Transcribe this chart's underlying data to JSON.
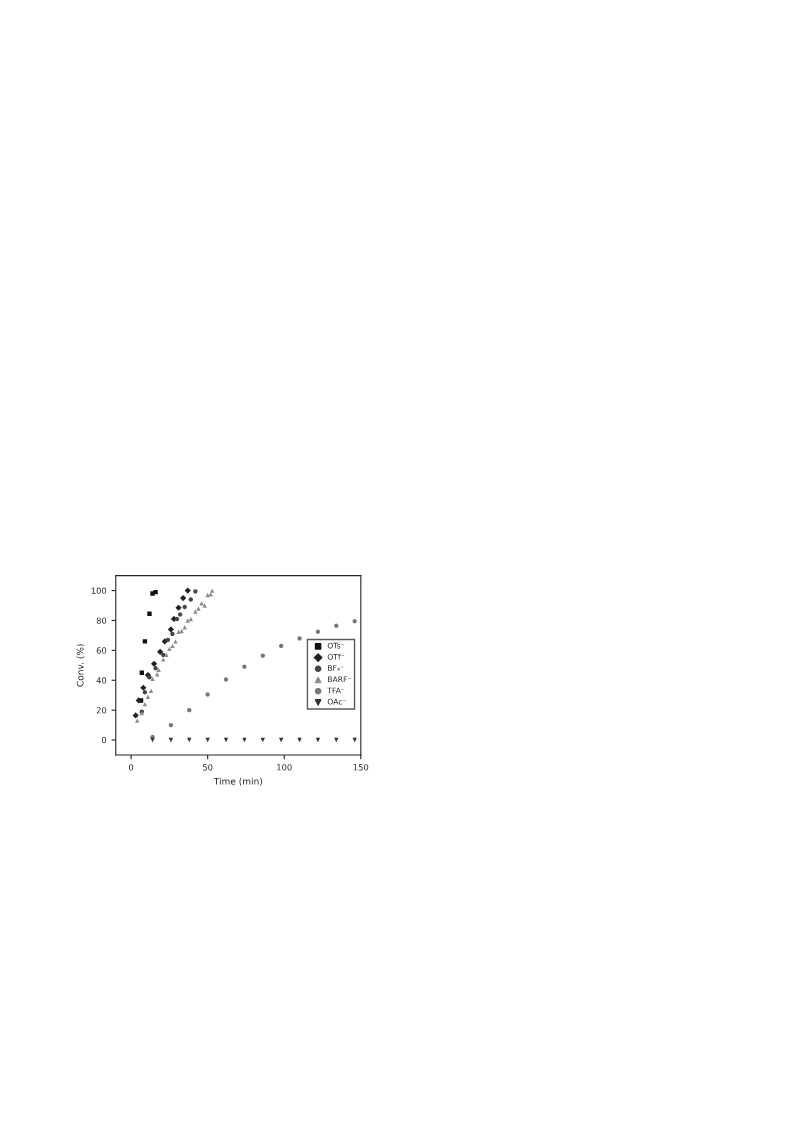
{
  "chart_data": {
    "type": "scatter",
    "xlabel": "Time (min)",
    "ylabel": "Conv. (%)",
    "xlim": [
      -10,
      150
    ],
    "xticks": [
      0,
      50,
      100,
      150
    ],
    "ylim": [
      -10,
      110
    ],
    "yticks": [
      0,
      20,
      40,
      60,
      80,
      100
    ],
    "grid": false,
    "legend": "right",
    "series": [
      {
        "name": "OTs⁻",
        "color": "#111111",
        "marker": "square",
        "x": [
          6.5,
          7,
          9,
          12,
          14,
          16
        ],
        "values": [
          26.5,
          45,
          66,
          84.5,
          98,
          99
        ]
      },
      {
        "name": "OTf⁻",
        "color": "#222222",
        "marker": "diamond",
        "x": [
          3,
          5,
          8,
          11,
          15,
          19,
          22,
          26,
          28,
          31,
          34,
          37
        ],
        "values": [
          16.5,
          26.5,
          35,
          43.5,
          51,
          59,
          66,
          74,
          81,
          88.5,
          95,
          100
        ]
      },
      {
        "name": "BF₄⁻",
        "color": "#444444",
        "marker": "circle",
        "x": [
          7,
          9,
          12,
          16,
          21,
          24,
          27,
          30,
          32,
          35,
          39,
          42
        ],
        "values": [
          19,
          32,
          42,
          48,
          57,
          67,
          71,
          81,
          84,
          89,
          94,
          99.5
        ]
      },
      {
        "name": "BARF⁻",
        "color": "#8c8c8c",
        "marker": "triangle",
        "x": [
          4,
          7,
          9,
          11,
          13,
          14,
          17,
          18,
          21,
          23,
          25,
          27,
          29,
          31,
          33,
          35,
          37,
          39,
          42,
          44,
          46,
          48,
          50,
          52,
          53
        ],
        "values": [
          13,
          18,
          24,
          29,
          33,
          41,
          44,
          47,
          54,
          57,
          61,
          63,
          66,
          72.5,
          73,
          75.5,
          80,
          81,
          86,
          88,
          91.5,
          90,
          97,
          97.5,
          100
        ]
      },
      {
        "name": "TFA⁻",
        "color": "#777777",
        "marker": "circle",
        "x": [
          14,
          26,
          38,
          50,
          62,
          74,
          86,
          98,
          110,
          122,
          134,
          146
        ],
        "values": [
          2,
          10,
          20,
          30.5,
          40.5,
          49,
          56.5,
          63,
          68,
          72.5,
          76.5,
          79.5
        ]
      },
      {
        "name": "OAc⁻",
        "color": "#333333",
        "marker": "triangle_down",
        "x": [
          14,
          26,
          38,
          50,
          62,
          74,
          86,
          98,
          110,
          122,
          134,
          146
        ],
        "values": [
          0,
          0,
          0,
          0,
          0,
          0,
          0,
          0,
          0,
          0,
          0,
          0
        ]
      }
    ]
  }
}
